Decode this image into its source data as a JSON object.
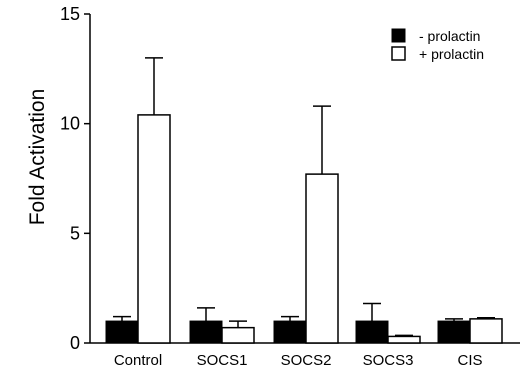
{
  "chart_data": {
    "type": "bar",
    "title": "",
    "xlabel": "",
    "ylabel": "Fold Activation",
    "ylim": [
      0,
      15
    ],
    "yticks": [
      "0",
      "5",
      "10",
      "15"
    ],
    "categories": [
      "Control",
      "SOCS1",
      "SOCS2",
      "SOCS3",
      "CIS"
    ],
    "legend_position": "top-right",
    "series": [
      {
        "name": "- prolactin",
        "color": "#000000",
        "values": [
          1.0,
          1.0,
          1.0,
          1.0,
          1.0
        ],
        "error": [
          0.2,
          0.6,
          0.2,
          0.8,
          0.1
        ]
      },
      {
        "name": "+ prolactin",
        "color": "#ffffff",
        "values": [
          10.4,
          0.7,
          7.7,
          0.3,
          1.1
        ],
        "error": [
          2.6,
          0.3,
          3.1,
          0.05,
          0.05
        ]
      }
    ]
  }
}
